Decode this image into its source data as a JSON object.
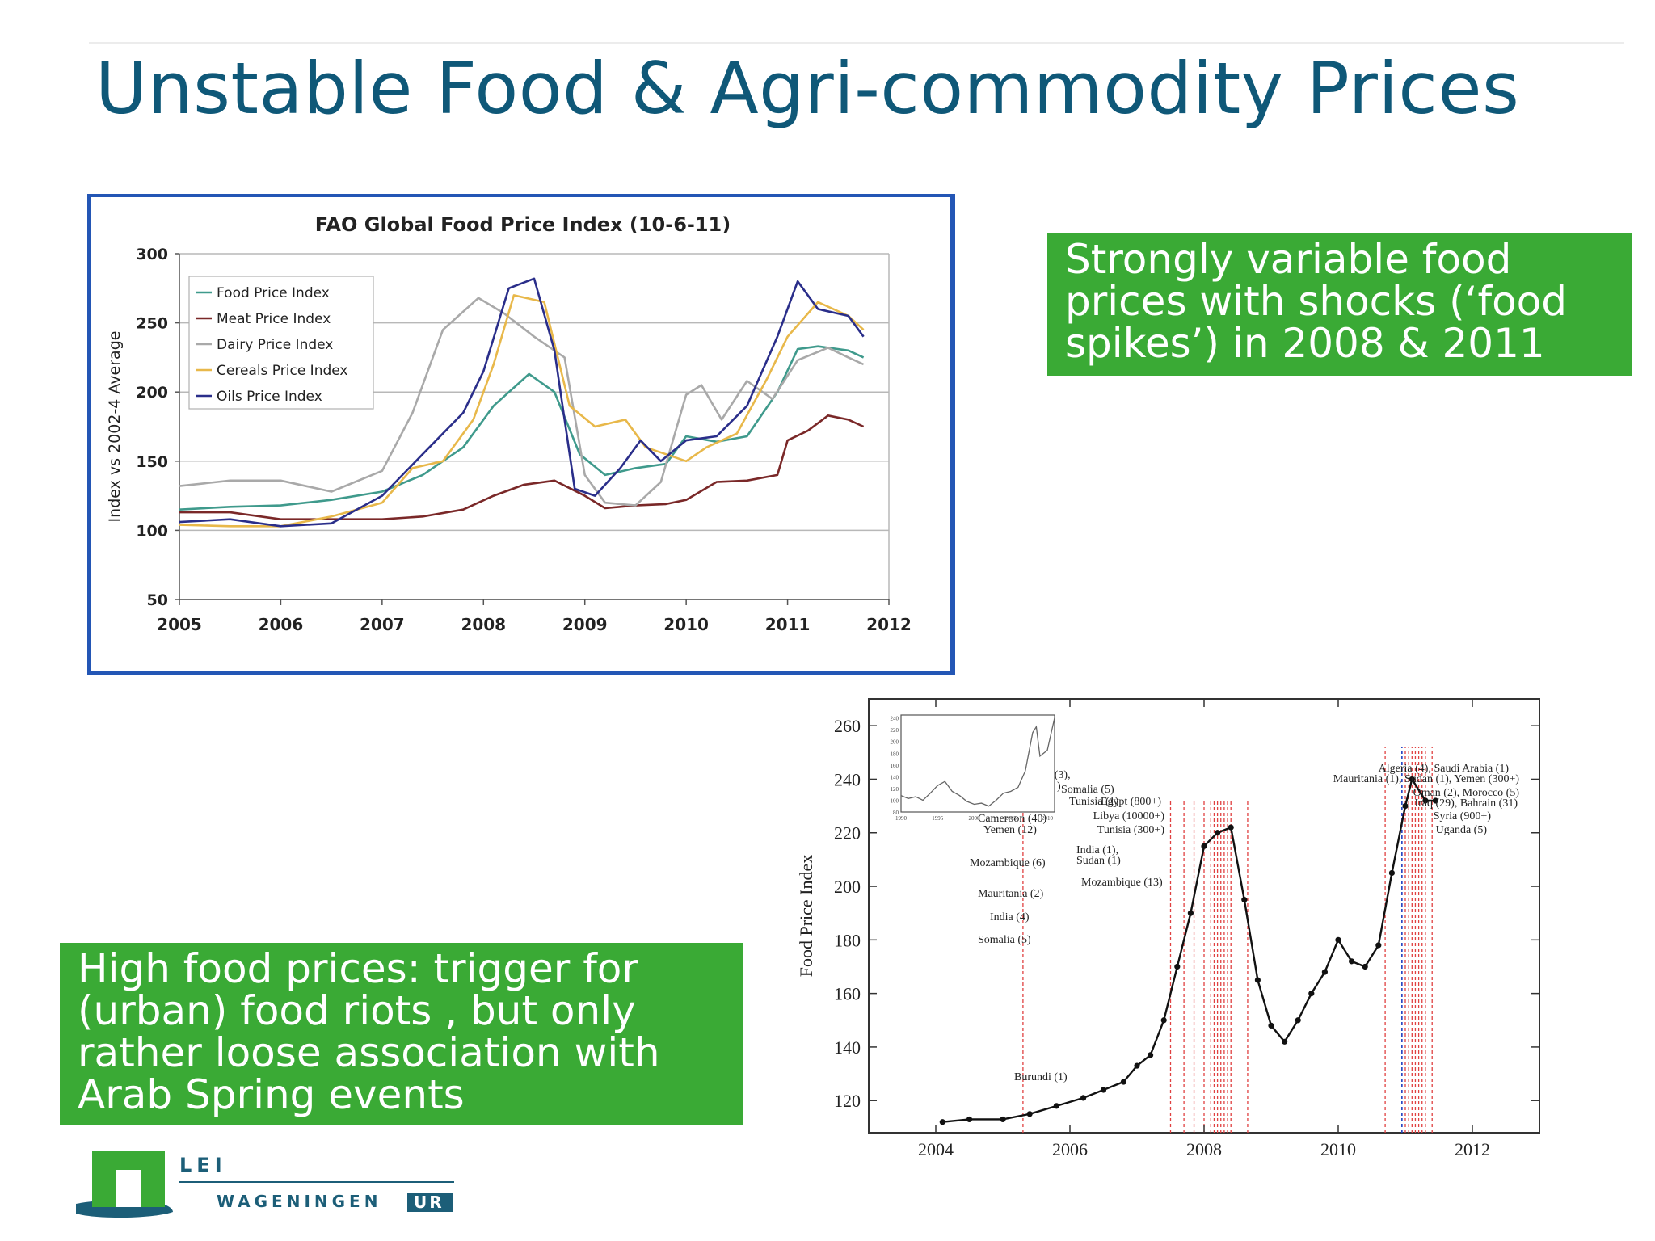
{
  "slide": {
    "title": "Unstable Food & Agri-commodity Prices",
    "callout_top": [
      "Strongly variable food",
      "prices with shocks (‘food",
      "spikes’) in 2008 & 2011"
    ],
    "callout_bottom": [
      "High food prices: trigger for",
      "(urban) food riots , but only",
      "rather loose association with",
      "Arab Spring events"
    ],
    "logo": {
      "top_text": "LEI",
      "bottom_text": "WAGENINGEN",
      "badge_text": "UR"
    },
    "colors": {
      "title": "#0f5878",
      "callout_bg": "#3aaa35",
      "frame": "#2356b5"
    }
  },
  "chart_data": [
    {
      "type": "line",
      "title": "FAO Global Food Price Index (10-6-11)",
      "xlabel": "",
      "ylabel": "Index vs 2002-4 Average",
      "xlim": [
        2005,
        2012
      ],
      "ylim": [
        50,
        300
      ],
      "xticks": [
        2005,
        2006,
        2007,
        2008,
        2009,
        2010,
        2011,
        2012
      ],
      "yticks": [
        50,
        100,
        150,
        200,
        250,
        300
      ],
      "grid": true,
      "legend": "top-left",
      "series": [
        {
          "name": "Food Price Index",
          "color": "#3f9a8c",
          "x": [
            2005.0,
            2005.5,
            2006.0,
            2006.5,
            2007.0,
            2007.4,
            2007.8,
            2008.1,
            2008.45,
            2008.7,
            2008.95,
            2009.2,
            2009.5,
            2009.8,
            2010.0,
            2010.3,
            2010.6,
            2010.9,
            2011.1,
            2011.3,
            2011.6,
            2011.75
          ],
          "y": [
            115,
            117,
            118,
            122,
            128,
            140,
            160,
            190,
            213,
            200,
            155,
            140,
            145,
            148,
            168,
            164,
            168,
            200,
            231,
            233,
            230,
            225
          ]
        },
        {
          "name": "Meat Price Index",
          "color": "#7a2828",
          "x": [
            2005.0,
            2005.5,
            2006.0,
            2006.5,
            2007.0,
            2007.4,
            2007.8,
            2008.1,
            2008.4,
            2008.7,
            2009.0,
            2009.2,
            2009.5,
            2009.8,
            2010.0,
            2010.3,
            2010.6,
            2010.9,
            2011.0,
            2011.2,
            2011.4,
            2011.6,
            2011.75
          ],
          "y": [
            113,
            113,
            108,
            108,
            108,
            110,
            115,
            125,
            133,
            136,
            125,
            116,
            118,
            119,
            122,
            135,
            136,
            140,
            165,
            172,
            183,
            180,
            175
          ]
        },
        {
          "name": "Dairy Price Index",
          "color": "#a9a9a9",
          "x": [
            2005.0,
            2005.5,
            2006.0,
            2006.5,
            2007.0,
            2007.3,
            2007.6,
            2007.95,
            2008.2,
            2008.5,
            2008.8,
            2009.0,
            2009.2,
            2009.5,
            2009.75,
            2010.0,
            2010.15,
            2010.35,
            2010.6,
            2010.85,
            2011.1,
            2011.4,
            2011.6,
            2011.75
          ],
          "y": [
            132,
            136,
            136,
            128,
            143,
            185,
            245,
            268,
            257,
            240,
            225,
            140,
            120,
            118,
            135,
            198,
            205,
            180,
            208,
            195,
            223,
            232,
            225,
            220
          ]
        },
        {
          "name": "Cereals Price Index",
          "color": "#e8b84a",
          "x": [
            2005.0,
            2005.5,
            2006.0,
            2006.5,
            2007.0,
            2007.3,
            2007.6,
            2007.9,
            2008.1,
            2008.3,
            2008.6,
            2008.85,
            2009.1,
            2009.4,
            2009.6,
            2009.8,
            2010.0,
            2010.2,
            2010.5,
            2010.8,
            2011.0,
            2011.3,
            2011.6,
            2011.75
          ],
          "y": [
            104,
            103,
            103,
            110,
            120,
            145,
            150,
            180,
            220,
            270,
            265,
            190,
            175,
            180,
            160,
            155,
            150,
            160,
            170,
            210,
            240,
            265,
            255,
            245
          ]
        },
        {
          "name": "Oils Price Index",
          "color": "#2a2e8a",
          "x": [
            2005.0,
            2005.5,
            2006.0,
            2006.5,
            2007.0,
            2007.4,
            2007.8,
            2008.0,
            2008.25,
            2008.5,
            2008.7,
            2008.9,
            2009.1,
            2009.35,
            2009.55,
            2009.75,
            2010.0,
            2010.3,
            2010.6,
            2010.9,
            2011.1,
            2011.3,
            2011.6,
            2011.75
          ],
          "y": [
            106,
            108,
            103,
            105,
            125,
            155,
            185,
            215,
            275,
            282,
            230,
            130,
            125,
            145,
            165,
            150,
            165,
            168,
            190,
            240,
            280,
            260,
            255,
            240
          ]
        }
      ]
    },
    {
      "type": "line",
      "title": "",
      "xlabel": "",
      "ylabel": "Food Price Index",
      "xlim": [
        2003,
        2013
      ],
      "ylim": [
        108,
        270
      ],
      "xticks": [
        2004,
        2006,
        2008,
        2010,
        2012
      ],
      "yticks": [
        120,
        140,
        160,
        180,
        200,
        220,
        240,
        260
      ],
      "grid": false,
      "series": [
        {
          "name": "",
          "color": "#111111",
          "x": [
            2004.1,
            2004.5,
            2005.0,
            2005.4,
            2005.8,
            2006.2,
            2006.5,
            2006.8,
            2007.0,
            2007.2,
            2007.4,
            2007.6,
            2007.8,
            2008.0,
            2008.2,
            2008.4,
            2008.6,
            2008.8,
            2009.0,
            2009.2,
            2009.4,
            2009.6,
            2009.8,
            2010.0,
            2010.2,
            2010.4,
            2010.6,
            2010.8,
            2011.0,
            2011.1,
            2011.3,
            2011.45
          ],
          "y": [
            112,
            113,
            113,
            115,
            118,
            121,
            124,
            127,
            133,
            137,
            150,
            170,
            190,
            215,
            220,
            222,
            195,
            165,
            148,
            142,
            150,
            160,
            168,
            180,
            172,
            170,
            178,
            205,
            230,
            240,
            232,
            232
          ]
        }
      ],
      "annotations": [
        "Burundi (1)",
        "Somalia (5)",
        "India (4)",
        "Mauritania (2)",
        "Mozambique (6)",
        "Cameroon (40)",
        "Yemen (12)",
        "Sudan (3)",
        "Haiti (5), Egypt (3),",
        "Cote d'Ivoire (1)",
        "Somalia (5)",
        "Tunisia (1)",
        "India (1),",
        "Sudan (1)",
        "Mozambique (13)",
        "Egypt (800+)",
        "Libya (10000+)",
        "Tunisia (300+)",
        "Algeria (4), Saudi Arabia (1)",
        "Mauritania (1), Sudan (1), Yemen (300+)",
        "Oman (2), Morocco (5)",
        "Iraq (29), Bahrain (31)",
        "Syria (900+)",
        "Uganda (5)"
      ],
      "inset": {
        "type": "line",
        "xlim": [
          1990,
          2011
        ],
        "ylim": [
          80,
          245
        ],
        "xticks": [
          1990,
          1995,
          2000,
          2005,
          2010
        ],
        "yticks": [
          80,
          100,
          120,
          140,
          160,
          180,
          200,
          220,
          240
        ],
        "x": [
          1990,
          1991,
          1992,
          1993,
          1994,
          1995,
          1996,
          1997,
          1998,
          1999,
          2000,
          2001,
          2002,
          2003,
          2004,
          2005,
          2006,
          2007,
          2008,
          2008.5,
          2009,
          2010,
          2011
        ],
        "y": [
          108,
          103,
          106,
          100,
          112,
          125,
          132,
          115,
          108,
          98,
          93,
          95,
          90,
          100,
          112,
          115,
          122,
          150,
          215,
          225,
          175,
          185,
          240
        ]
      }
    }
  ]
}
